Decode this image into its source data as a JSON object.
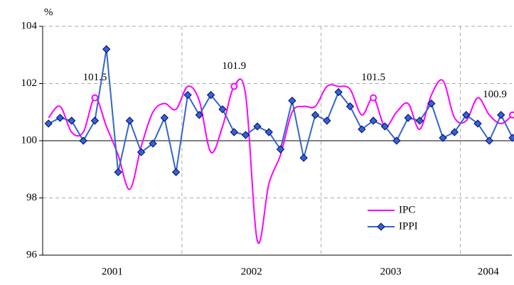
{
  "chart_data": {
    "type": "line",
    "y_unit": "%",
    "x": [
      2001.042,
      2001.125,
      2001.208,
      2001.292,
      2001.375,
      2001.458,
      2001.542,
      2001.625,
      2001.708,
      2001.792,
      2001.875,
      2001.958,
      2002.042,
      2002.125,
      2002.208,
      2002.292,
      2002.375,
      2002.458,
      2002.542,
      2002.625,
      2002.708,
      2002.792,
      2002.875,
      2002.958,
      2003.042,
      2003.125,
      2003.208,
      2003.292,
      2003.375,
      2003.458,
      2003.542,
      2003.625,
      2003.708,
      2003.792,
      2003.875,
      2003.958,
      2004.042,
      2004.125,
      2004.208,
      2004.292,
      2004.375
    ],
    "xlim": [
      2001,
      2004.37
    ],
    "xticks": [
      {
        "value": 2001.5,
        "label": "2001"
      },
      {
        "value": 2002.5,
        "label": "2002"
      },
      {
        "value": 2003.5,
        "label": "2003"
      },
      {
        "value": 2004.2,
        "label": "2004"
      }
    ],
    "xgrid": [
      2002,
      2003,
      2004
    ],
    "ylim": [
      96,
      104
    ],
    "yticks": [
      96,
      98,
      100,
      102,
      104
    ],
    "grid": true,
    "reference_line": 100,
    "series": [
      {
        "name": "IPC",
        "color": "#ff00ff",
        "smooth": true,
        "values": [
          100.8,
          101.2,
          100.3,
          100.3,
          101.5,
          100.5,
          99.5,
          98.3,
          99.8,
          101.0,
          101.3,
          101.1,
          101.9,
          101.4,
          99.6,
          100.5,
          101.9,
          101.6,
          96.5,
          98.5,
          99.5,
          101.0,
          101.2,
          101.2,
          101.9,
          101.9,
          101.8,
          100.9,
          101.5,
          100.5,
          101.0,
          101.3,
          100.4,
          101.6,
          102.1,
          100.8,
          100.7,
          101.5,
          100.9,
          100.6,
          100.9
        ],
        "value_labels": [
          null,
          null,
          null,
          null,
          "101.5",
          null,
          null,
          null,
          null,
          null,
          null,
          null,
          null,
          null,
          null,
          null,
          "101.9",
          null,
          null,
          null,
          null,
          null,
          null,
          null,
          null,
          null,
          null,
          null,
          "101.5",
          null,
          null,
          null,
          null,
          null,
          null,
          null,
          null,
          null,
          null,
          null,
          "100.9"
        ]
      },
      {
        "name": "IPPI",
        "color": "#3366cc",
        "smooth": false,
        "values": [
          100.6,
          100.8,
          100.7,
          100.0,
          100.7,
          103.2,
          98.9,
          100.7,
          99.6,
          99.9,
          100.8,
          98.9,
          101.6,
          100.9,
          101.6,
          101.1,
          100.3,
          100.2,
          100.5,
          100.3,
          99.7,
          101.4,
          99.4,
          100.9,
          100.7,
          101.7,
          101.2,
          100.4,
          100.7,
          100.5,
          100.0,
          100.8,
          100.7,
          101.3,
          100.1,
          100.3,
          100.9,
          100.6,
          100.0,
          100.9,
          100.1
        ]
      }
    ]
  }
}
